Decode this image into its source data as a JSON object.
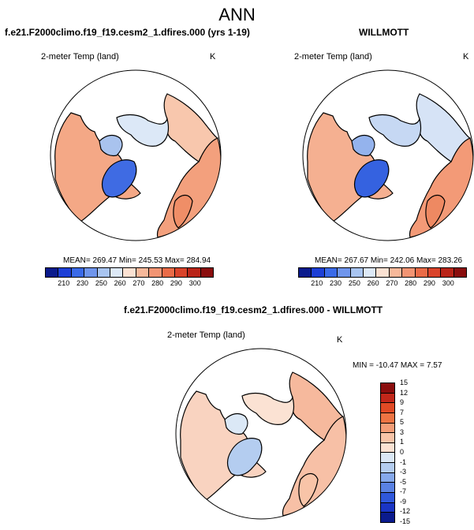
{
  "page_title": "ANN",
  "panels": {
    "model": {
      "title": "f.e21.F2000climo.f19_f19.cesm2_1.dfires.000 (yrs 1-19)",
      "variable": "2-meter Temp (land)",
      "units": "K",
      "stats": "MEAN= 269.47  Min= 245.53  Max= 284.94"
    },
    "obs": {
      "title": "WILLMOTT",
      "variable": "2-meter Temp (land)",
      "units": "K",
      "stats": "MEAN= 267.67  Min= 242.06  Max= 283.26"
    },
    "diff": {
      "title": "f.e21.F2000climo.f19_f19.cesm2_1.dfires.000 - WILLMOTT",
      "variable": "2-meter Temp (land)",
      "units": "K",
      "stats": "MIN = -10.47 MAX =  7.57"
    }
  },
  "colorbar_abs": {
    "colors": [
      "#0a1a8c",
      "#1d3fd6",
      "#3a6ae8",
      "#6f95ec",
      "#a8c4f0",
      "#dde9f7",
      "#fbe1d2",
      "#f7b89a",
      "#f19473",
      "#ea6b47",
      "#d9432a",
      "#b92418",
      "#8a0d0d"
    ],
    "ticks": [
      "210",
      "230",
      "250",
      "260",
      "270",
      "280",
      "290",
      "300"
    ]
  },
  "colorbar_diff": {
    "colors": [
      "#8a0d0d",
      "#c1271a",
      "#e04a25",
      "#ee7443",
      "#f49d77",
      "#f8c4a8",
      "#fbe2d3",
      "#dbe8f6",
      "#b4cdf0",
      "#86a9eb",
      "#5a82e4",
      "#2f58dc",
      "#1a35c4",
      "#0b1b8e"
    ],
    "labels": [
      "15",
      "12",
      "9",
      "7",
      "5",
      "3",
      "1",
      "0",
      "-1",
      "-3",
      "-5",
      "-7",
      "-9",
      "-12",
      "-15"
    ]
  },
  "maps": {
    "model": {
      "ocean": "#ffffff",
      "regions": [
        {
          "name": "north-america",
          "color": "#f4a886"
        },
        {
          "name": "eurasia-south",
          "color": "#f3a07d"
        },
        {
          "name": "siberia",
          "color": "#f8c7ad"
        },
        {
          "name": "arctic-land",
          "color": "#dce8f7"
        },
        {
          "name": "canadian-archipelago",
          "color": "#a9c3ee"
        },
        {
          "name": "greenland",
          "color": "#3f6be3"
        },
        {
          "name": "scandinavia",
          "color": "#ef8e67"
        }
      ]
    },
    "obs": {
      "ocean": "#ffffff",
      "regions": [
        {
          "name": "north-america",
          "color": "#f5b091"
        },
        {
          "name": "eurasia-south",
          "color": "#f39a77"
        },
        {
          "name": "siberia",
          "color": "#d6e3f6"
        },
        {
          "name": "arctic-land",
          "color": "#c6d8f3"
        },
        {
          "name": "canadian-archipelago",
          "color": "#94b3ed"
        },
        {
          "name": "greenland",
          "color": "#3562e0"
        },
        {
          "name": "scandinavia",
          "color": "#ee8962"
        }
      ]
    },
    "diff": {
      "ocean": "#ffffff",
      "regions": [
        {
          "name": "north-america",
          "color": "#f9d3c0"
        },
        {
          "name": "eurasia-south",
          "color": "#f7c0a6"
        },
        {
          "name": "siberia",
          "color": "#f6b99d"
        },
        {
          "name": "arctic-land",
          "color": "#fbe2d3"
        },
        {
          "name": "canadian-archipelago",
          "color": "#dbe8f6"
        },
        {
          "name": "greenland",
          "color": "#b4cdf0"
        },
        {
          "name": "scandinavia",
          "color": "#f8c4a8"
        }
      ]
    }
  }
}
